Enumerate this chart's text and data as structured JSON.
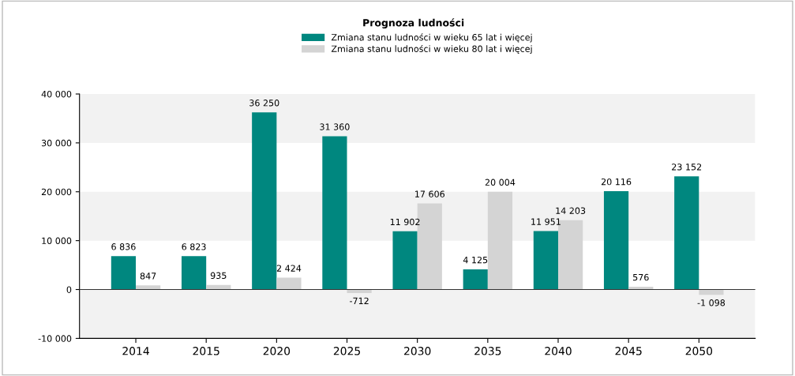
{
  "chart_data": {
    "type": "bar",
    "title": "Prognoza ludności",
    "categories": [
      "2014",
      "2015",
      "2020",
      "2025",
      "2030",
      "2035",
      "2040",
      "2045",
      "2050"
    ],
    "series": [
      {
        "name": "Zmiana stanu ludności w wieku 65 lat i więcej",
        "color": "#00877f",
        "values": [
          6836,
          6823,
          36250,
          31360,
          11902,
          4125,
          11951,
          20116,
          23152
        ],
        "value_labels": [
          "6 836",
          "6 823",
          "36 250",
          "31 360",
          "11 902",
          "4 125",
          "11 951",
          "20 116",
          "23 152"
        ]
      },
      {
        "name": "Zmiana stanu ludności w wieku 80 lat i więcej",
        "color": "#d4d4d4",
        "values": [
          847,
          935,
          2424,
          -712,
          17606,
          20004,
          14203,
          576,
          -1098
        ],
        "value_labels": [
          "847",
          "935",
          "2 424",
          "-712",
          "17 606",
          "20 004",
          "14 203",
          "576",
          "-1 098"
        ]
      }
    ],
    "ylim": [
      -10000,
      40000
    ],
    "yticks": [
      {
        "value": -10000,
        "label": "-10 000"
      },
      0,
      {
        "value": 10000,
        "label": "10 000"
      },
      {
        "value": 20000,
        "label": "20 000"
      },
      {
        "value": 30000,
        "label": "30 000"
      },
      {
        "value": 40000,
        "label": "40 000"
      }
    ],
    "grid": "y",
    "legend": "top"
  }
}
